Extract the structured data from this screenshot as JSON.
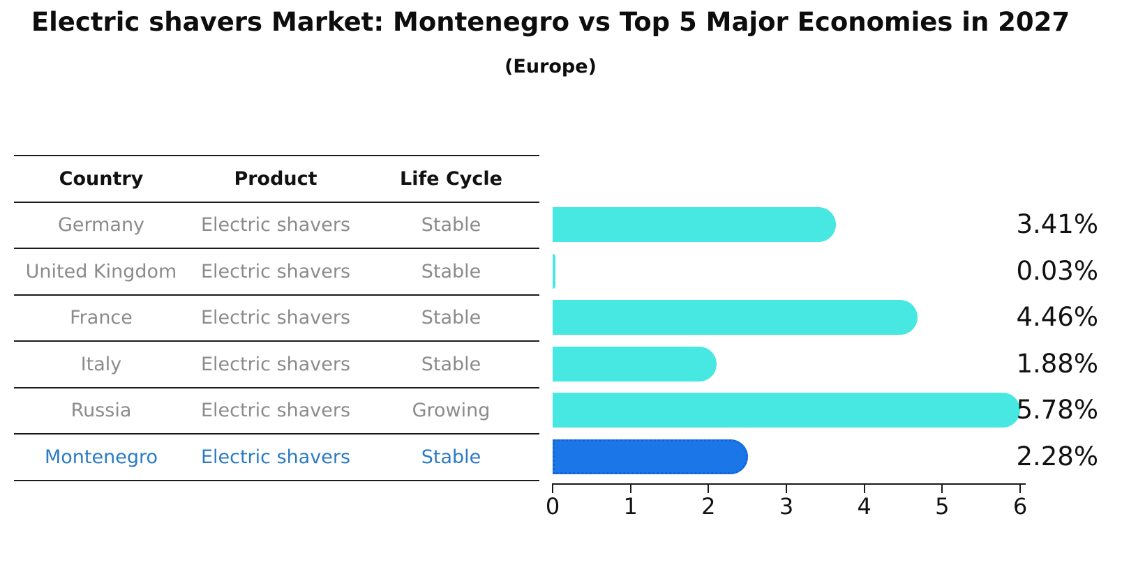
{
  "title": "Electric shavers Market: Montenegro vs Top 5 Major Economies in 2027",
  "subtitle": "(Europe)",
  "table": {
    "headers": [
      "Country",
      "Product",
      "Life Cycle"
    ],
    "rows": [
      {
        "country": "Germany",
        "product": "Electric shavers",
        "life_cycle": "Stable",
        "highlight": false
      },
      {
        "country": "United Kingdom",
        "product": "Electric shavers",
        "life_cycle": "Stable",
        "highlight": false
      },
      {
        "country": "France",
        "product": "Electric shavers",
        "life_cycle": "Stable",
        "highlight": false
      },
      {
        "country": "Italy",
        "product": "Electric shavers",
        "life_cycle": "Stable",
        "highlight": false
      },
      {
        "country": "Russia",
        "product": "Electric shavers",
        "life_cycle": "Growing",
        "highlight": false
      },
      {
        "country": "Montenegro",
        "product": "Electric shavers",
        "life_cycle": "Stable",
        "highlight": true
      }
    ]
  },
  "chart_data": {
    "type": "bar",
    "orientation": "horizontal",
    "title": "Electric shavers Market: Montenegro vs Top 5 Major Economies in 2027",
    "subtitle": "(Europe)",
    "categories": [
      "Germany",
      "United Kingdom",
      "France",
      "Italy",
      "Russia",
      "Montenegro"
    ],
    "values": [
      3.41,
      0.03,
      4.46,
      1.88,
      5.78,
      2.28
    ],
    "value_labels": [
      "3.41%",
      "0.03%",
      "4.46%",
      "1.88%",
      "5.78%",
      "2.28%"
    ],
    "unit": "%",
    "x_ticks": [
      0,
      1,
      2,
      3,
      4,
      5,
      6
    ],
    "x_tick_labels": [
      "0",
      "1",
      "2",
      "3",
      "4",
      "5",
      "6"
    ],
    "xlim": [
      0,
      6
    ],
    "grid": false,
    "legend": false,
    "highlight_category": "Montenegro",
    "colors": {
      "bar": "#47e7e2",
      "highlight_bar": "#1b77e8",
      "highlight_border": "#1263d6",
      "highlight_text": "#2b7bc4",
      "row_text": "#8b8b8b",
      "axis_text": "#111111"
    }
  }
}
